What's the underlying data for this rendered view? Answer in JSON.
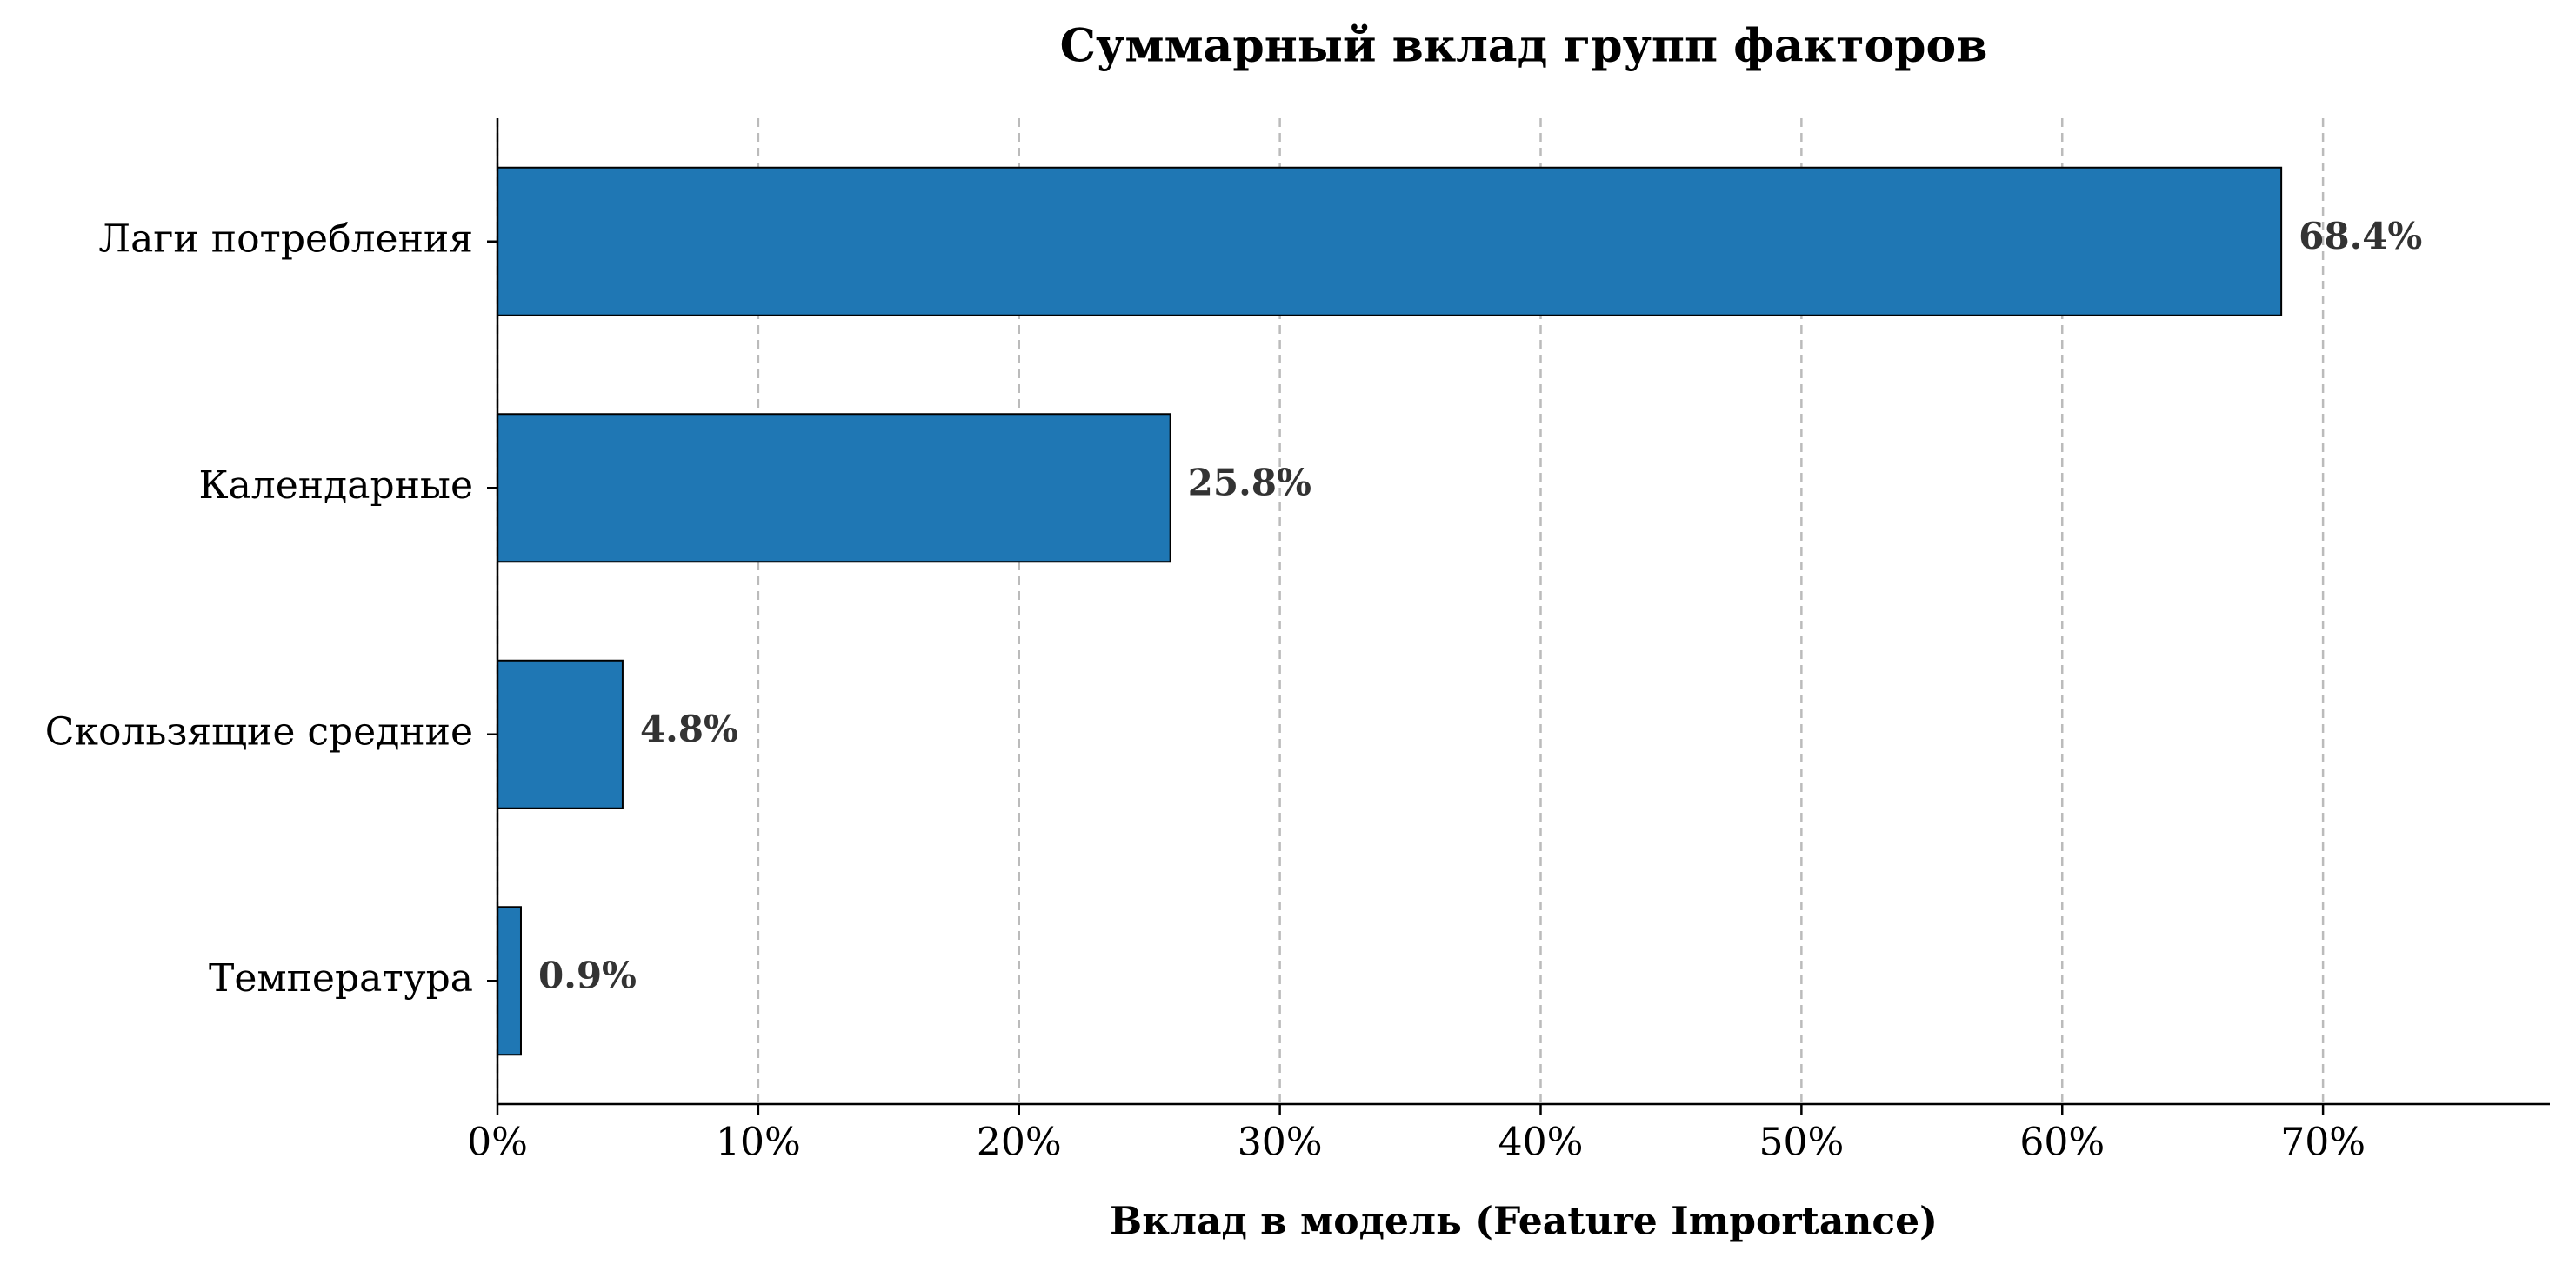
{
  "chart_data": {
    "type": "bar",
    "orientation": "horizontal",
    "title": "Суммарный вклад групп факторов",
    "xlabel": "Вклад в модель (Feature Importance)",
    "categories": [
      "Лаги потребления",
      "Календарные",
      "Скользящие средние",
      "Температура"
    ],
    "values": [
      68.4,
      25.8,
      4.8,
      0.9
    ],
    "value_labels": [
      "68.4%",
      "25.8%",
      "4.8%",
      "0.9%"
    ],
    "color": "#1f77b4",
    "xlim": [
      0,
      78.7
    ],
    "xticks": [
      {
        "value": 0,
        "label": "0%"
      },
      {
        "value": 10,
        "label": "10%"
      },
      {
        "value": 20,
        "label": "20%"
      },
      {
        "value": 30,
        "label": "30%"
      },
      {
        "value": 40,
        "label": "40%"
      },
      {
        "value": 50,
        "label": "50%"
      },
      {
        "value": 60,
        "label": "60%"
      },
      {
        "value": 70,
        "label": "70%"
      }
    ],
    "grid": true
  }
}
